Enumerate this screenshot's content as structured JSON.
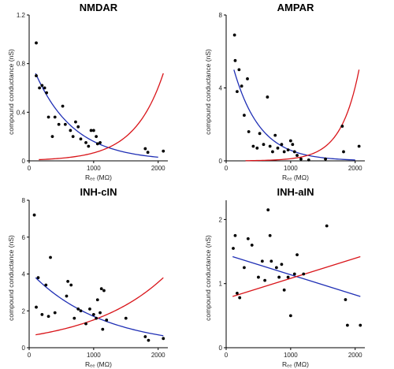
{
  "colors": {
    "blue": "#1f2fb5",
    "red": "#d9151a",
    "points": "#000000"
  },
  "chart_data": [
    {
      "type": "scatter",
      "title": "NMDAR",
      "xlabel": "Rₑₑ (MΩ)",
      "ylabel": "compound conductance (nS)",
      "xlim": [
        0,
        2150
      ],
      "ylim": [
        0,
        1.2
      ],
      "xticks": [
        "0",
        "1000",
        "2000"
      ],
      "yticks": [
        "0",
        "0.4",
        "0.8",
        "1.2"
      ],
      "xtick_values": [
        0,
        1000,
        2000
      ],
      "ytick_values": [
        0,
        0.4,
        0.8,
        1.2
      ],
      "points": [
        [
          110,
          0.97
        ],
        [
          110,
          0.7
        ],
        [
          160,
          0.6
        ],
        [
          200,
          0.62
        ],
        [
          240,
          0.6
        ],
        [
          270,
          0.56
        ],
        [
          300,
          0.36
        ],
        [
          360,
          0.2
        ],
        [
          400,
          0.36
        ],
        [
          460,
          0.3
        ],
        [
          520,
          0.45
        ],
        [
          560,
          0.3
        ],
        [
          640,
          0.25
        ],
        [
          680,
          0.2
        ],
        [
          720,
          0.32
        ],
        [
          760,
          0.28
        ],
        [
          800,
          0.18
        ],
        [
          880,
          0.15
        ],
        [
          920,
          0.12
        ],
        [
          960,
          0.25
        ],
        [
          1000,
          0.25
        ],
        [
          1040,
          0.2
        ],
        [
          1060,
          0.14
        ],
        [
          1100,
          0.15
        ],
        [
          1800,
          0.1
        ],
        [
          1840,
          0.07
        ],
        [
          2080,
          0.08
        ]
      ],
      "series": [
        {
          "curve": "exp_decay",
          "color": "blue",
          "values": [
            [
              100,
              0.72
            ],
            [
              600,
              0.34
            ],
            [
              1000,
              0.18
            ],
            [
              1500,
              0.08
            ],
            [
              2000,
              0.03
            ]
          ]
        },
        {
          "curve": "exp_growth",
          "color": "red",
          "values": [
            [
              150,
              0.01
            ],
            [
              1000,
              0.15
            ],
            [
              1500,
              0.35
            ],
            [
              2000,
              0.6
            ],
            [
              2080,
              0.72
            ]
          ]
        }
      ]
    },
    {
      "type": "scatter",
      "title": "AMPAR",
      "xlabel": "Rₑₑ (MΩ)",
      "ylabel": "compound conductance (nS)",
      "xlim": [
        0,
        2150
      ],
      "ylim": [
        0,
        8
      ],
      "xticks": [
        "0",
        "1000",
        "2000"
      ],
      "yticks": [
        "0",
        "4",
        "8"
      ],
      "xtick_values": [
        0,
        1000,
        2000
      ],
      "ytick_values": [
        0,
        4,
        8
      ],
      "points": [
        [
          130,
          6.9
        ],
        [
          140,
          5.5
        ],
        [
          170,
          3.8
        ],
        [
          200,
          5.0
        ],
        [
          240,
          4.1
        ],
        [
          280,
          2.5
        ],
        [
          330,
          4.5
        ],
        [
          350,
          1.6
        ],
        [
          420,
          0.8
        ],
        [
          480,
          0.7
        ],
        [
          520,
          1.5
        ],
        [
          580,
          0.9
        ],
        [
          640,
          3.5
        ],
        [
          680,
          0.8
        ],
        [
          720,
          0.5
        ],
        [
          760,
          1.4
        ],
        [
          800,
          0.7
        ],
        [
          860,
          0.9
        ],
        [
          900,
          0.5
        ],
        [
          960,
          0.6
        ],
        [
          1000,
          1.1
        ],
        [
          1030,
          0.9
        ],
        [
          1060,
          0.5
        ],
        [
          1100,
          0.3
        ],
        [
          1160,
          0.1
        ],
        [
          1280,
          0.05
        ],
        [
          1540,
          0.1
        ],
        [
          1800,
          1.9
        ],
        [
          1820,
          0.5
        ],
        [
          2060,
          0.8
        ]
      ],
      "series": [
        {
          "curve": "exp_decay",
          "color": "blue",
          "values": [
            [
              120,
              5.0
            ],
            [
              500,
              2.3
            ],
            [
              1000,
              0.8
            ],
            [
              1500,
              0.2
            ],
            [
              2000,
              0.05
            ]
          ]
        },
        {
          "curve": "exp_growth",
          "color": "red",
          "values": [
            [
              300,
              0.01
            ],
            [
              1000,
              0.4
            ],
            [
              1500,
              1.5
            ],
            [
              1900,
              3.4
            ],
            [
              2060,
              5.0
            ]
          ]
        }
      ]
    },
    {
      "type": "scatter",
      "title": "INH-cIN",
      "xlabel": "Rₑₑ (MΩ)",
      "ylabel": "compound conductance (nS)",
      "xlim": [
        0,
        2150
      ],
      "ylim": [
        0,
        8
      ],
      "xticks": [
        "0",
        "1000",
        "2000"
      ],
      "yticks": [
        "0",
        "2",
        "4",
        "6",
        "8"
      ],
      "xtick_values": [
        0,
        1000,
        2000
      ],
      "ytick_values": [
        0,
        2,
        4,
        6,
        8
      ],
      "points": [
        [
          80,
          7.2
        ],
        [
          110,
          2.2
        ],
        [
          140,
          3.8
        ],
        [
          200,
          1.8
        ],
        [
          260,
          3.4
        ],
        [
          300,
          1.7
        ],
        [
          330,
          4.9
        ],
        [
          400,
          1.9
        ],
        [
          580,
          2.8
        ],
        [
          600,
          3.6
        ],
        [
          650,
          3.4
        ],
        [
          700,
          1.6
        ],
        [
          760,
          2.1
        ],
        [
          800,
          2.0
        ],
        [
          880,
          1.3
        ],
        [
          940,
          2.1
        ],
        [
          1000,
          1.8
        ],
        [
          1040,
          1.6
        ],
        [
          1060,
          2.6
        ],
        [
          1100,
          1.9
        ],
        [
          1120,
          3.2
        ],
        [
          1140,
          1.0
        ],
        [
          1160,
          3.1
        ],
        [
          1200,
          1.5
        ],
        [
          1500,
          1.6
        ],
        [
          1800,
          0.6
        ],
        [
          1850,
          0.4
        ],
        [
          2080,
          0.5
        ]
      ],
      "series": [
        {
          "curve": "exp_decay",
          "color": "blue",
          "values": [
            [
              100,
              3.8
            ],
            [
              500,
              2.9
            ],
            [
              1000,
              1.8
            ],
            [
              1500,
              1.1
            ],
            [
              2080,
              0.65
            ]
          ]
        },
        {
          "curve": "exp_growth",
          "color": "red",
          "values": [
            [
              100,
              0.7
            ],
            [
              500,
              1.0
            ],
            [
              1000,
              1.5
            ],
            [
              1500,
              2.3
            ],
            [
              2080,
              3.8
            ]
          ]
        }
      ]
    },
    {
      "type": "scatter",
      "title": "INH-aIN",
      "xlabel": "Rₑₑ (MΩ)",
      "ylabel": "compound conductance (nS)",
      "xlim": [
        0,
        2150
      ],
      "ylim": [
        0,
        2.3
      ],
      "xticks": [
        "0",
        "1000",
        "2000"
      ],
      "yticks": [
        "0",
        "1",
        "2"
      ],
      "xtick_values": [
        0,
        1000,
        2000
      ],
      "ytick_values": [
        0,
        1,
        2
      ],
      "points": [
        [
          110,
          1.55
        ],
        [
          140,
          1.75
        ],
        [
          170,
          0.85
        ],
        [
          210,
          0.78
        ],
        [
          280,
          1.25
        ],
        [
          340,
          1.7
        ],
        [
          400,
          1.6
        ],
        [
          500,
          1.1
        ],
        [
          560,
          1.35
        ],
        [
          600,
          1.05
        ],
        [
          650,
          2.15
        ],
        [
          680,
          1.75
        ],
        [
          700,
          1.35
        ],
        [
          780,
          1.25
        ],
        [
          820,
          1.1
        ],
        [
          860,
          1.3
        ],
        [
          900,
          0.9
        ],
        [
          960,
          1.1
        ],
        [
          1000,
          0.5
        ],
        [
          1060,
          1.15
        ],
        [
          1100,
          1.45
        ],
        [
          1200,
          1.15
        ],
        [
          1560,
          1.9
        ],
        [
          1850,
          0.75
        ],
        [
          1880,
          0.35
        ],
        [
          2080,
          0.35
        ]
      ],
      "series": [
        {
          "curve": "linear",
          "color": "blue",
          "values": [
            [
              100,
              1.42
            ],
            [
              2080,
              0.8
            ]
          ]
        },
        {
          "curve": "linear",
          "color": "red",
          "values": [
            [
              100,
              0.8
            ],
            [
              2080,
              1.42
            ]
          ]
        }
      ]
    }
  ]
}
